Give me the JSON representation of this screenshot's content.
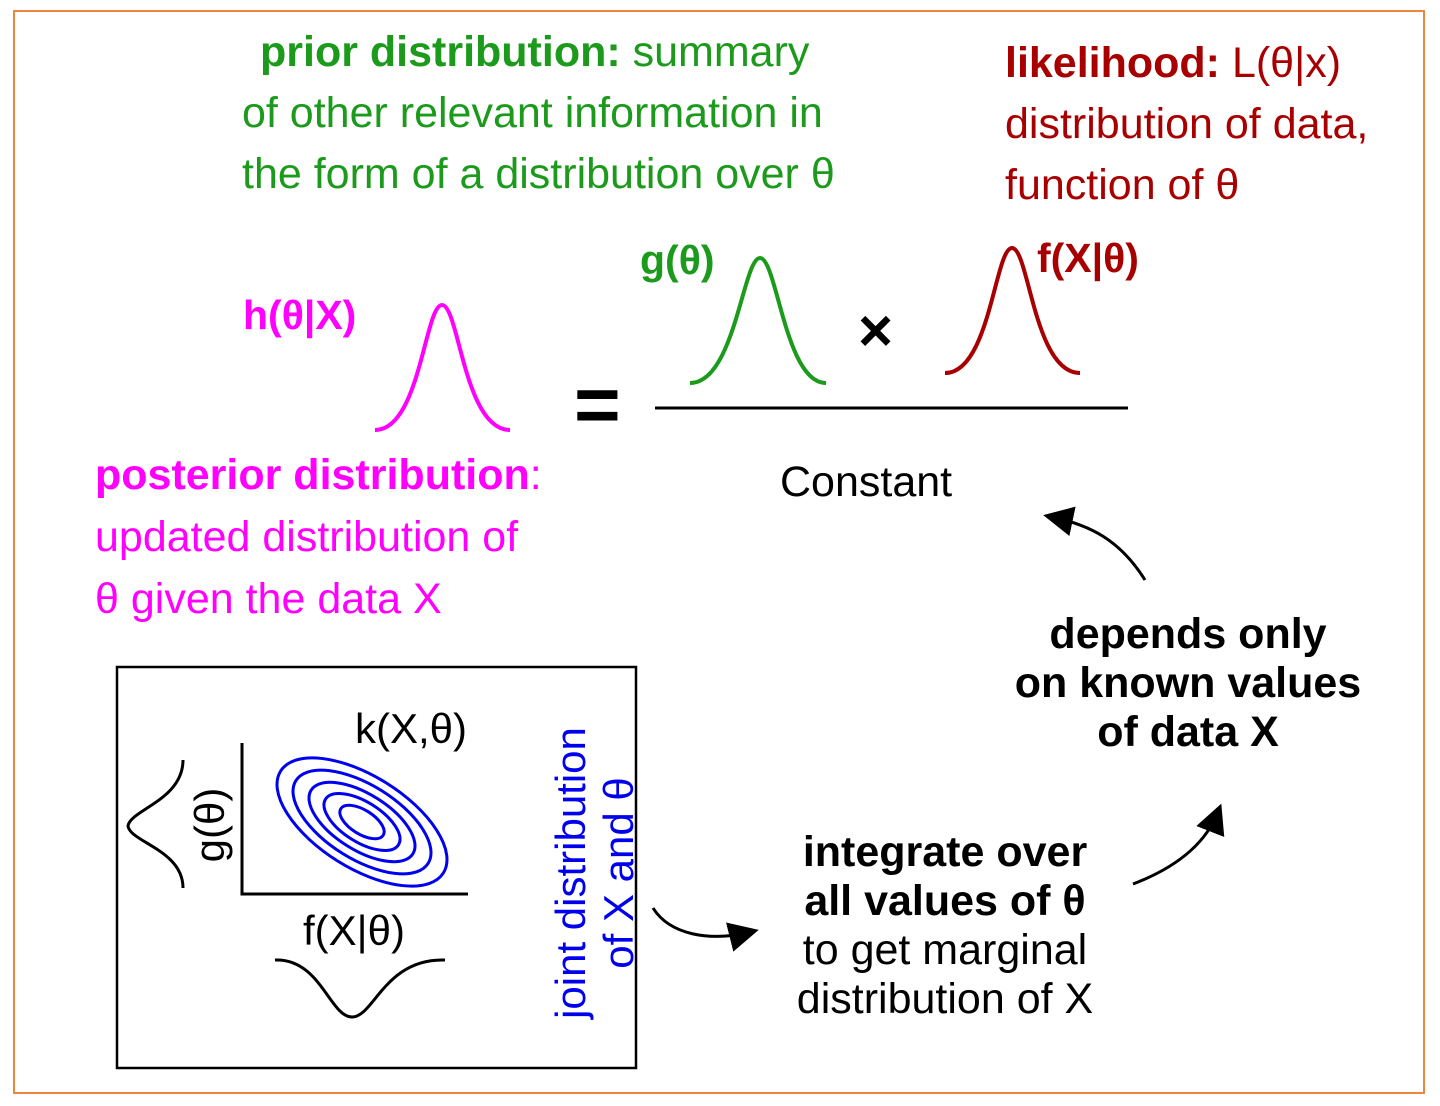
{
  "prior": {
    "heading": "prior distribution:",
    "lines": [
      "summary",
      "of other relevant information in",
      "the form of a distribution over θ"
    ]
  },
  "likelihood": {
    "heading": "likelihood:",
    "lines": [
      "L(θ|x)",
      "distribution of data,",
      "function of θ"
    ]
  },
  "posterior": {
    "label": "h(θ|X)",
    "heading": "posterior distribution",
    "colon": ":",
    "lines": [
      "updated distribution of",
      "θ given the data X"
    ]
  },
  "equation": {
    "prior_label": "g(θ)",
    "likelihood_label": "f(X|θ)",
    "equals": "=",
    "times": "×",
    "denominator": "Constant"
  },
  "depends": [
    "depends only",
    "on known values",
    "of data X"
  ],
  "integrate": {
    "bold_lines": [
      "integrate over",
      "all values of θ"
    ],
    "lines": [
      "to get marginal",
      "distribution of X"
    ]
  },
  "joint_box": {
    "joint_label": "k(X,θ)",
    "prior_label": "g(θ)",
    "likelihood_label": "f(X|θ)",
    "caption": [
      "joint distribution",
      "of X and θ"
    ]
  },
  "colors": {
    "prior": "#1b9a1b",
    "likelihood": "#a80000",
    "posterior": "#ff00ff",
    "joint": "#0000ee",
    "frame": "#f0843c"
  }
}
